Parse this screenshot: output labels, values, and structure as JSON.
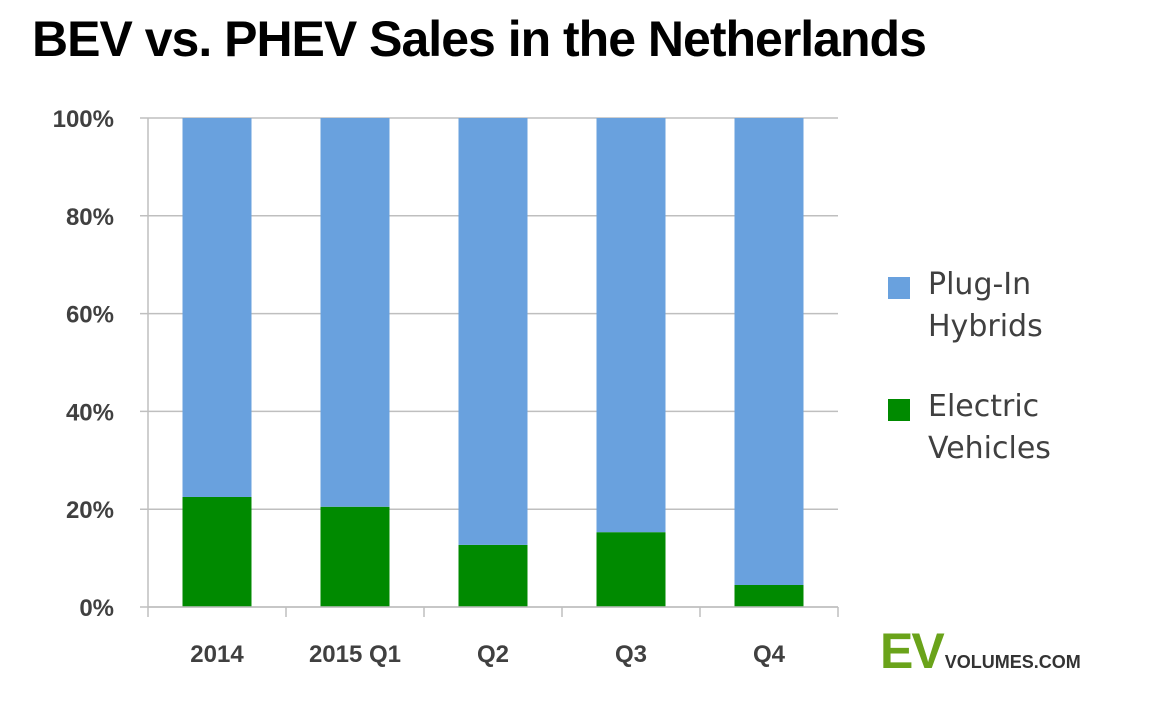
{
  "chart_data": {
    "type": "bar",
    "stacked": true,
    "title": "BEV vs. PHEV Sales in the Netherlands",
    "categories": [
      "2014",
      "2015 Q1",
      "Q2",
      "Q3",
      "Q4"
    ],
    "series": [
      {
        "name": "Electric Vehicles",
        "color": "#008a00",
        "values": [
          22.5,
          20.5,
          12.7,
          15.3,
          4.5
        ]
      },
      {
        "name": "Plug-In Hybrids",
        "color": "#69a1de",
        "values": [
          77.5,
          79.5,
          87.3,
          84.7,
          95.5
        ]
      }
    ],
    "y_ticks": [
      0,
      20,
      40,
      60,
      80,
      100
    ],
    "y_tick_labels": [
      "0%",
      "20%",
      "40%",
      "60%",
      "80%",
      "100%"
    ],
    "ylim": [
      0,
      100
    ],
    "grid": true,
    "legend": {
      "placement": "right",
      "items": [
        {
          "label": "Plug-In Hybrids",
          "color": "#69a1de"
        },
        {
          "label": "Electric Vehicles",
          "color": "#008a00"
        }
      ]
    }
  },
  "logo": {
    "brand_main": "EV",
    "brand_rest": "VOLUMES.COM",
    "main_color": "#6aa31a"
  }
}
